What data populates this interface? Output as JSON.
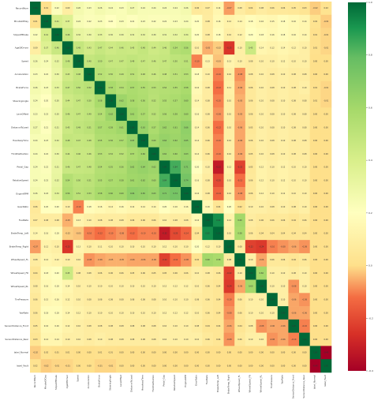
{
  "colors": {
    "low": "#a50026",
    "mid": "#ffffbf",
    "high": "#006837",
    "background": "#ffffff"
  },
  "colorbar": {
    "ticks": [
      {
        "value": 1.0,
        "label": "1.0"
      },
      {
        "value": 0.8,
        "label": "0.8"
      },
      {
        "value": 0.6,
        "label": "0.6"
      },
      {
        "value": 0.4,
        "label": "0.4"
      },
      {
        "value": 0.2,
        "label": "0.2"
      },
      {
        "value": 0.0,
        "label": "0.0"
      },
      {
        "value": -0.2,
        "label": "-0.2"
      },
      {
        "value": -0.4,
        "label": "-0.4"
      }
    ]
  },
  "chart_data": {
    "type": "heatmap",
    "title": "",
    "xlabel": "",
    "ylabel": "",
    "vlim": [
      -0.4,
      1.0
    ],
    "colormap": "RdYlGn",
    "annotations": "cell values printed at very small size (approximate)",
    "labels": [
      "RecordNum",
      "MinuteOfDay",
      "SlopeOfBrake",
      "AgeOfDriver",
      "Speed",
      "Acceleration",
      "BrakeForce",
      "SteeringAngle",
      "LaneOffset",
      "DistanceToLead",
      "HeadwayTime",
      "ThrottlePosition",
      "Pedal_Gap",
      "RelativeSpeed",
      "EngineRPM",
      "GearRatio",
      "FuelRate",
      "BrakeTemp_Left",
      "BrakeTemp_Right",
      "WheelSpeed_FL",
      "WheelSpeed_FR",
      "WheelSpeed_RL",
      "TirePressure",
      "YawRate",
      "SensorDistance_Front",
      "SensorDistance_Rear",
      "label_Normal",
      "label_Fault"
    ],
    "matrix": [
      [
        1.0,
        0.01,
        0.22,
        0.09,
        0.26,
        0.23,
        0.26,
        0.24,
        0.23,
        0.27,
        0.24,
        0.24,
        0.24,
        0.24,
        0.26,
        0.06,
        0.07,
        0.14,
        -0.07,
        0.08,
        0.04,
        0.08,
        0.06,
        0.06,
        0.05,
        0.03,
        -0.02,
        0.02
      ],
      [
        0.01,
        1.0,
        0.41,
        0.37,
        0.24,
        0.22,
        0.23,
        0.2,
        0.23,
        0.21,
        0.23,
        0.22,
        0.22,
        0.23,
        0.24,
        0.2,
        0.08,
        0.16,
        0.12,
        0.14,
        0.18,
        0.16,
        0.15,
        0.18,
        0.16,
        0.14,
        0.02,
        -0.02
      ],
      [
        0.22,
        0.41,
        1.0,
        0.46,
        0.32,
        0.3,
        0.33,
        0.3,
        0.3,
        0.31,
        0.32,
        0.3,
        0.31,
        0.32,
        0.34,
        0.2,
        0.08,
        0.18,
        0.1,
        0.12,
        0.2,
        0.18,
        0.16,
        0.18,
        0.16,
        0.14,
        0.01,
        -0.01
      ],
      [
        0.09,
        0.37,
        0.46,
        1.0,
        0.48,
        0.43,
        0.47,
        0.44,
        0.46,
        0.45,
        0.48,
        0.44,
        0.46,
        0.54,
        0.56,
        0.1,
        -0.05,
        -0.02,
        -0.25,
        0.1,
        0.45,
        0.14,
        0.12,
        0.14,
        0.12,
        0.1,
        0.01,
        -0.01
      ],
      [
        0.26,
        0.24,
        0.32,
        0.48,
        1.0,
        0.48,
        0.5,
        0.47,
        0.47,
        0.49,
        0.47,
        0.46,
        0.47,
        0.5,
        0.51,
        -0.1,
        0.13,
        -0.03,
        0.13,
        0.1,
        0.08,
        0.1,
        0.1,
        0.12,
        0.1,
        0.1,
        0.0,
        0.0
      ],
      [
        0.23,
        0.22,
        0.3,
        0.43,
        0.48,
        1.0,
        0.52,
        0.5,
        0.49,
        0.51,
        0.48,
        0.46,
        0.48,
        0.51,
        0.53,
        0.18,
        0.1,
        -0.1,
        0.1,
        -0.08,
        0.08,
        0.1,
        0.08,
        0.1,
        0.08,
        0.08,
        0.0,
        0.0
      ],
      [
        0.26,
        0.23,
        0.33,
        0.47,
        0.5,
        0.52,
        1.0,
        0.58,
        0.54,
        0.57,
        0.55,
        0.53,
        0.54,
        0.55,
        0.58,
        0.16,
        0.08,
        -0.12,
        0.11,
        -0.06,
        0.06,
        0.1,
        0.08,
        0.1,
        0.08,
        0.1,
        0.01,
        -0.01
      ],
      [
        0.24,
        0.2,
        0.3,
        0.44,
        0.47,
        0.5,
        0.58,
        1.0,
        0.62,
        0.58,
        0.56,
        0.52,
        0.55,
        0.57,
        0.6,
        0.14,
        0.08,
        -0.1,
        0.1,
        -0.05,
        0.06,
        0.1,
        0.08,
        0.1,
        0.08,
        0.08,
        0.01,
        -0.01
      ],
      [
        0.23,
        0.23,
        0.3,
        0.46,
        0.47,
        0.49,
        0.54,
        0.62,
        1.0,
        0.61,
        0.57,
        0.52,
        0.56,
        0.58,
        0.6,
        0.16,
        0.08,
        -0.08,
        0.1,
        -0.05,
        0.06,
        0.1,
        0.08,
        0.1,
        0.08,
        0.08,
        0.0,
        0.0
      ],
      [
        0.27,
        0.21,
        0.31,
        0.45,
        0.49,
        0.51,
        0.57,
        0.58,
        0.61,
        1.0,
        0.63,
        0.57,
        0.62,
        0.61,
        0.66,
        0.14,
        0.06,
        -0.12,
        0.1,
        -0.06,
        0.05,
        0.1,
        0.08,
        0.1,
        0.08,
        0.08,
        0.0,
        0.0
      ],
      [
        0.24,
        0.23,
        0.32,
        0.48,
        0.47,
        0.48,
        0.55,
        0.56,
        0.57,
        0.63,
        1.0,
        0.6,
        0.64,
        0.62,
        0.65,
        0.14,
        0.06,
        -0.1,
        0.1,
        -0.06,
        0.06,
        0.1,
        0.08,
        0.1,
        0.08,
        0.08,
        0.0,
        0.0
      ],
      [
        0.24,
        0.22,
        0.3,
        0.44,
        0.46,
        0.46,
        0.53,
        0.52,
        0.52,
        0.57,
        0.6,
        1.0,
        0.62,
        0.6,
        0.63,
        0.14,
        0.06,
        -0.1,
        0.1,
        -0.06,
        0.05,
        0.1,
        0.08,
        0.1,
        0.08,
        0.08,
        0.0,
        0.0
      ],
      [
        0.24,
        0.22,
        0.31,
        0.46,
        0.47,
        0.48,
        0.54,
        0.55,
        0.56,
        0.62,
        0.64,
        0.62,
        1.0,
        0.84,
        0.71,
        0.2,
        0.1,
        -0.32,
        0.12,
        -0.22,
        0.05,
        0.12,
        0.1,
        0.12,
        0.1,
        0.1,
        0.0,
        0.0
      ],
      [
        0.24,
        0.23,
        0.32,
        0.54,
        0.5,
        0.51,
        0.55,
        0.57,
        0.58,
        0.61,
        0.62,
        0.6,
        0.84,
        1.0,
        0.74,
        0.16,
        0.08,
        -0.2,
        0.1,
        -0.12,
        0.06,
        0.12,
        0.1,
        0.12,
        0.1,
        0.1,
        0.0,
        0.0
      ],
      [
        0.26,
        0.24,
        0.34,
        0.56,
        0.51,
        0.53,
        0.58,
        0.6,
        0.6,
        0.66,
        0.65,
        0.63,
        0.71,
        0.74,
        1.0,
        0.16,
        0.08,
        -0.14,
        0.1,
        -0.08,
        0.06,
        0.12,
        0.1,
        0.12,
        0.1,
        0.1,
        0.0,
        0.0
      ],
      [
        0.06,
        0.2,
        0.2,
        0.1,
        -0.1,
        0.18,
        0.16,
        0.14,
        0.16,
        0.14,
        0.14,
        0.14,
        0.2,
        0.16,
        0.16,
        1.0,
        0.16,
        0.04,
        0.2,
        0.02,
        0.1,
        0.1,
        0.08,
        0.1,
        0.08,
        0.1,
        0.0,
        0.0
      ],
      [
        0.07,
        0.08,
        0.08,
        -0.05,
        0.13,
        0.1,
        0.08,
        0.08,
        0.08,
        0.06,
        0.06,
        0.06,
        0.1,
        0.08,
        0.08,
        0.16,
        1.0,
        0.92,
        0.12,
        0.6,
        0.08,
        0.06,
        0.06,
        0.06,
        0.04,
        0.06,
        0.0,
        0.0
      ],
      [
        0.14,
        0.16,
        0.18,
        -0.02,
        -0.03,
        -0.1,
        -0.12,
        -0.1,
        -0.08,
        -0.12,
        -0.1,
        -0.1,
        -0.32,
        -0.2,
        -0.14,
        0.04,
        0.92,
        1.0,
        0.1,
        0.58,
        0.06,
        0.04,
        0.04,
        0.04,
        0.04,
        0.04,
        0.0,
        0.0
      ],
      [
        -0.07,
        0.12,
        0.1,
        -0.25,
        0.13,
        0.1,
        0.11,
        0.1,
        0.1,
        0.1,
        0.1,
        0.1,
        0.12,
        0.1,
        0.1,
        0.2,
        0.12,
        0.1,
        1.0,
        0.08,
        -0.22,
        -0.24,
        -0.1,
        -0.08,
        -0.06,
        -0.08,
        0.0,
        0.0
      ],
      [
        0.08,
        0.14,
        0.12,
        0.1,
        0.1,
        -0.08,
        -0.06,
        -0.05,
        -0.05,
        -0.06,
        -0.06,
        -0.06,
        -0.22,
        -0.12,
        -0.08,
        0.02,
        0.6,
        0.58,
        0.08,
        1.0,
        0.1,
        -0.06,
        0.06,
        0.06,
        0.04,
        0.06,
        0.0,
        0.0
      ],
      [
        0.04,
        0.18,
        0.2,
        0.45,
        0.08,
        0.08,
        0.06,
        0.06,
        0.06,
        0.05,
        0.06,
        0.05,
        0.05,
        0.06,
        0.06,
        0.1,
        0.08,
        0.06,
        -0.22,
        0.1,
        1.0,
        0.6,
        0.1,
        0.1,
        0.08,
        0.1,
        0.0,
        0.0
      ],
      [
        0.08,
        0.16,
        0.18,
        0.14,
        0.1,
        0.1,
        0.1,
        0.1,
        0.1,
        0.1,
        0.1,
        0.1,
        0.12,
        0.12,
        0.12,
        0.1,
        0.06,
        0.04,
        -0.24,
        -0.06,
        0.6,
        1.0,
        0.1,
        0.1,
        -0.08,
        0.1,
        0.0,
        0.0
      ],
      [
        0.06,
        0.15,
        0.16,
        0.12,
        0.1,
        0.08,
        0.08,
        0.08,
        0.08,
        0.08,
        0.08,
        0.08,
        0.1,
        0.1,
        0.1,
        0.08,
        0.06,
        0.04,
        -0.1,
        0.06,
        0.1,
        0.1,
        1.0,
        0.1,
        -0.06,
        -0.08,
        0.0,
        0.0
      ],
      [
        0.06,
        0.18,
        0.18,
        0.14,
        0.12,
        0.1,
        0.1,
        0.1,
        0.1,
        0.1,
        0.1,
        0.1,
        0.12,
        0.12,
        0.12,
        0.1,
        0.06,
        0.04,
        -0.08,
        0.06,
        0.1,
        0.1,
        0.1,
        1.0,
        -0.06,
        -0.06,
        0.0,
        0.0
      ],
      [
        0.05,
        0.16,
        0.16,
        0.12,
        0.1,
        0.08,
        0.08,
        0.08,
        0.08,
        0.08,
        0.08,
        0.08,
        0.1,
        0.1,
        0.1,
        0.08,
        0.04,
        0.04,
        -0.06,
        0.04,
        0.08,
        -0.08,
        -0.06,
        -0.06,
        1.0,
        -0.1,
        0.0,
        0.0
      ],
      [
        0.03,
        0.14,
        0.14,
        0.1,
        0.1,
        0.08,
        0.1,
        0.08,
        0.08,
        0.08,
        0.08,
        0.08,
        0.1,
        0.1,
        0.1,
        0.1,
        0.06,
        0.04,
        -0.08,
        0.06,
        0.1,
        0.1,
        -0.08,
        -0.06,
        -0.1,
        1.0,
        0.0,
        0.0
      ],
      [
        -0.02,
        0.02,
        0.01,
        0.01,
        0.0,
        0.0,
        0.01,
        0.01,
        0.0,
        0.0,
        0.0,
        0.0,
        0.0,
        0.0,
        0.0,
        0.0,
        0.0,
        0.0,
        0.0,
        0.0,
        0.0,
        0.0,
        0.0,
        0.0,
        0.0,
        0.0,
        1.0,
        -0.4
      ],
      [
        0.02,
        -0.02,
        -0.01,
        -0.01,
        0.0,
        0.0,
        -0.01,
        -0.01,
        0.0,
        0.0,
        0.0,
        0.0,
        0.0,
        0.0,
        0.0,
        0.0,
        0.0,
        0.0,
        0.0,
        0.0,
        0.0,
        0.0,
        0.0,
        0.0,
        0.0,
        0.0,
        -0.4,
        1.0
      ]
    ]
  }
}
